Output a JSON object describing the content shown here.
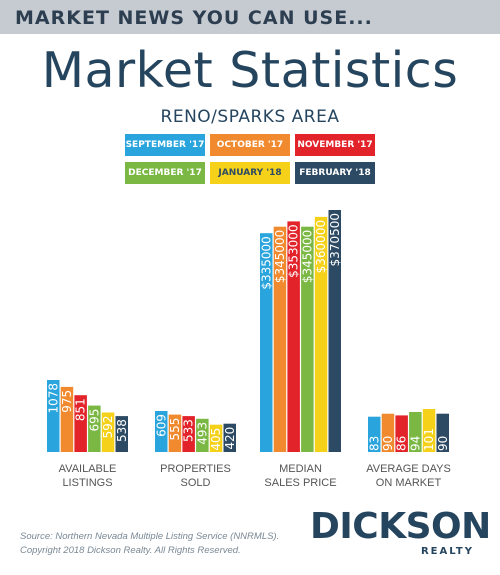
{
  "banner": {
    "text": "MARKET NEWS YOU CAN USE..."
  },
  "header": {
    "title": "Market Statistics",
    "subtitle": "RENO/SPARKS AREA"
  },
  "chart_data": {
    "type": "bar",
    "title": "Market Statistics",
    "subtitle": "RENO/SPARKS AREA",
    "legend_position": "top-center",
    "grid": false,
    "series": [
      {
        "name": "SEPTEMBER '17",
        "color": "#2aa4dc"
      },
      {
        "name": "OCTOBER '17",
        "color": "#f18a2e"
      },
      {
        "name": "NOVEMBER '17",
        "color": "#e2232a"
      },
      {
        "name": "DECEMBER '17",
        "color": "#7ab843"
      },
      {
        "name": "JANUARY '18",
        "color": "#f5d11a"
      },
      {
        "name": "FEBRUARY '18",
        "color": "#2c4a63"
      }
    ],
    "groups": [
      {
        "category": [
          "AVAILABLE",
          "LISTINGS"
        ],
        "values": [
          1078,
          975,
          851,
          695,
          592,
          538
        ],
        "labels": [
          "1078",
          "975",
          "851",
          "695",
          "592",
          "538"
        ]
      },
      {
        "category": [
          "PROPERTIES",
          "SOLD"
        ],
        "values": [
          609,
          555,
          533,
          493,
          405,
          420
        ],
        "labels": [
          "609",
          "555",
          "533",
          "493",
          "405",
          "420"
        ]
      },
      {
        "category": [
          "MEDIAN",
          "SALES PRICE"
        ],
        "values": [
          335000,
          345000,
          353000,
          345000,
          360000,
          370500
        ],
        "labels": [
          "$335000",
          "$345000",
          "$353000",
          "$345000",
          "$360000",
          "$370500"
        ]
      },
      {
        "category": [
          "AVERAGE DAYS",
          "ON MARKET"
        ],
        "values": [
          83,
          90,
          86,
          94,
          101,
          90
        ],
        "labels": [
          "83",
          "90",
          "86",
          "94",
          "101",
          "90"
        ]
      }
    ]
  },
  "footer": {
    "source_line1": "Source: Northern Nevada Multiple Listing Service (NNRMLS).",
    "source_line2": "Copyright 2018 Dickson Realty. All Rights Reserved.",
    "logo_name": "DICKSON",
    "logo_sub": "REALTY"
  }
}
